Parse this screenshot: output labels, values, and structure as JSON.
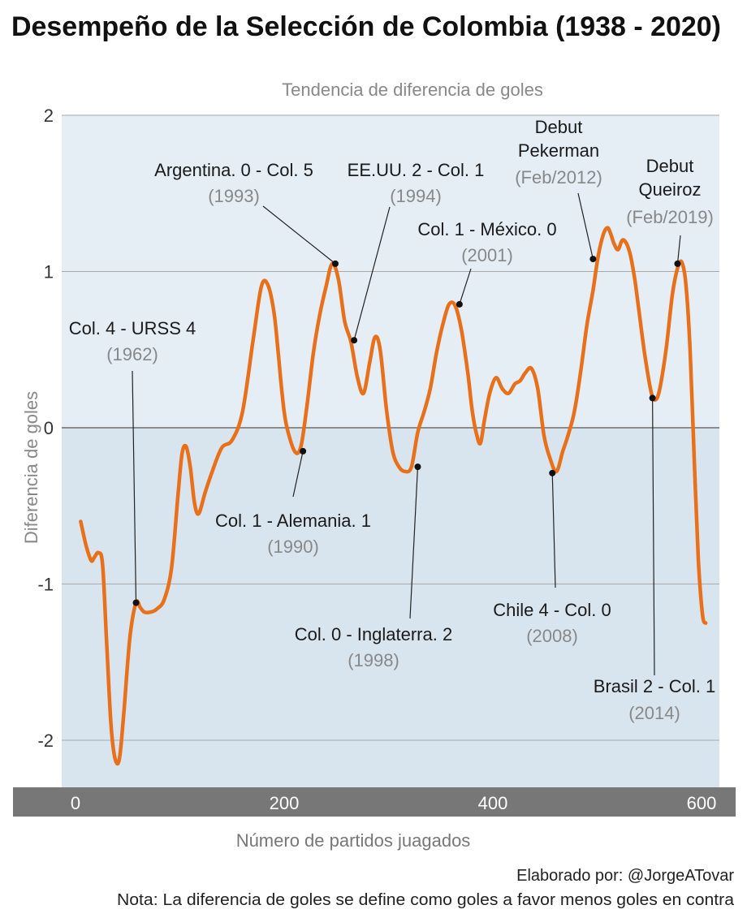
{
  "title": "Desempeño de la Selección de Colombia (1938 - 2020)",
  "subtitle": "Tendencia de diferencia de goles",
  "footer": {
    "credit": "Elaborado por: @JorgeATovar",
    "note": "Nota: La diferencia de goles se define como goles a favor menos goles en contra"
  },
  "colors": {
    "line": "#e8701a",
    "panel_positive": "#e5eef4",
    "panel_negative": "#d9e5ee",
    "axis_band": "#777777",
    "annotation_year": "#888888"
  },
  "chart_data": {
    "type": "line",
    "title": "Desempeño de la Selección de Colombia (1938 - 2020)",
    "subtitle": "Tendencia de diferencia de goles",
    "xlabel": "Número de partidos juagados",
    "ylabel": "Diferencia de goles",
    "xlim": [
      -10,
      615
    ],
    "ylim": [
      -2.3,
      2.0
    ],
    "x_ticks": [
      0,
      200,
      400,
      600
    ],
    "x_tick_labels": [
      "0",
      "200",
      "400",
      "600"
    ],
    "y_ticks": [
      -2,
      -1,
      0,
      1,
      2
    ],
    "y_tick_labels": [
      "-2",
      "-1",
      "0",
      "1",
      "2"
    ],
    "series": [
      {
        "name": "Tendencia de diferencia de goles",
        "x": [
          5,
          10,
          15,
          18,
          22,
          26,
          30,
          34,
          38,
          42,
          46,
          52,
          58,
          62,
          66,
          72,
          78,
          85,
          92,
          98,
          102,
          106,
          110,
          114,
          118,
          124,
          130,
          140,
          150,
          160,
          170,
          178,
          184,
          190,
          194,
          198,
          202,
          210,
          216,
          222,
          228,
          234,
          240,
          246,
          252,
          258,
          264,
          270,
          276,
          282,
          287,
          292,
          298,
          304,
          310,
          316,
          322,
          328,
          334,
          340,
          346,
          352,
          358,
          364,
          370,
          376,
          380,
          384,
          388,
          392,
          397,
          403,
          409,
          415,
          421,
          426,
          431,
          437,
          443,
          449,
          455,
          461,
          467,
          472,
          478,
          484,
          490,
          496,
          501,
          506,
          510,
          513,
          516,
          520,
          524,
          528,
          532,
          536,
          540,
          546,
          552,
          556,
          560,
          566,
          572,
          577,
          581,
          585,
          589,
          593,
          597,
          601,
          604
        ],
        "y": [
          -0.6,
          -0.75,
          -0.85,
          -0.83,
          -0.8,
          -0.88,
          -1.4,
          -1.9,
          -2.12,
          -2.12,
          -1.85,
          -1.35,
          -1.12,
          -1.15,
          -1.18,
          -1.18,
          -1.16,
          -1.1,
          -0.9,
          -0.45,
          -0.17,
          -0.12,
          -0.25,
          -0.48,
          -0.55,
          -0.42,
          -0.3,
          -0.13,
          -0.08,
          0.1,
          0.55,
          0.9,
          0.92,
          0.75,
          0.5,
          0.22,
          0.02,
          -0.15,
          -0.12,
          0.15,
          0.48,
          0.72,
          0.9,
          1.05,
          0.95,
          0.68,
          0.55,
          0.33,
          0.22,
          0.42,
          0.58,
          0.5,
          0.12,
          -0.15,
          -0.25,
          -0.28,
          -0.25,
          -0.03,
          0.1,
          0.25,
          0.48,
          0.66,
          0.79,
          0.78,
          0.62,
          0.35,
          0.12,
          -0.03,
          -0.1,
          0.05,
          0.22,
          0.32,
          0.25,
          0.22,
          0.28,
          0.3,
          0.35,
          0.38,
          0.25,
          -0.05,
          -0.2,
          -0.28,
          -0.15,
          -0.05,
          0.1,
          0.35,
          0.65,
          0.88,
          1.1,
          1.24,
          1.28,
          1.24,
          1.18,
          1.14,
          1.2,
          1.18,
          1.1,
          0.95,
          0.75,
          0.45,
          0.22,
          0.18,
          0.25,
          0.5,
          0.85,
          1.02,
          1.06,
          0.92,
          0.5,
          -0.2,
          -0.85,
          -1.2,
          -1.25
        ]
      }
    ],
    "annotations": [
      {
        "label": "Col. 4 - URSS 4",
        "year": "(1962)",
        "x": 58,
        "y": -1.12
      },
      {
        "label": "Col. 1 - Alemania. 1",
        "year": "(1990)",
        "x": 218,
        "y": -0.15
      },
      {
        "label": "Argentina. 0 - Col. 5",
        "year": "(1993)",
        "x": 249,
        "y": 1.05
      },
      {
        "label": "EE.UU. 2 - Col. 1",
        "year": "(1994)",
        "x": 267,
        "y": 0.56
      },
      {
        "label": "Col. 0 - Inglaterra. 2",
        "year": "(1998)",
        "x": 328,
        "y": -0.25
      },
      {
        "label": "Col. 1 - México. 0",
        "year": "(2001)",
        "x": 368,
        "y": 0.79
      },
      {
        "label": "Chile 4 - Col. 0",
        "year": "(2008)",
        "x": 457,
        "y": -0.29
      },
      {
        "label": "Debut Pekerman",
        "year": "(Feb/2012)",
        "x": 496,
        "y": 1.08
      },
      {
        "label": "Brasil 2 - Col. 1",
        "year": "(2014)",
        "x": 553,
        "y": 0.19
      },
      {
        "label": "Debut Queiroz",
        "year": "(Feb/2019)",
        "x": 577,
        "y": 1.05
      }
    ]
  }
}
